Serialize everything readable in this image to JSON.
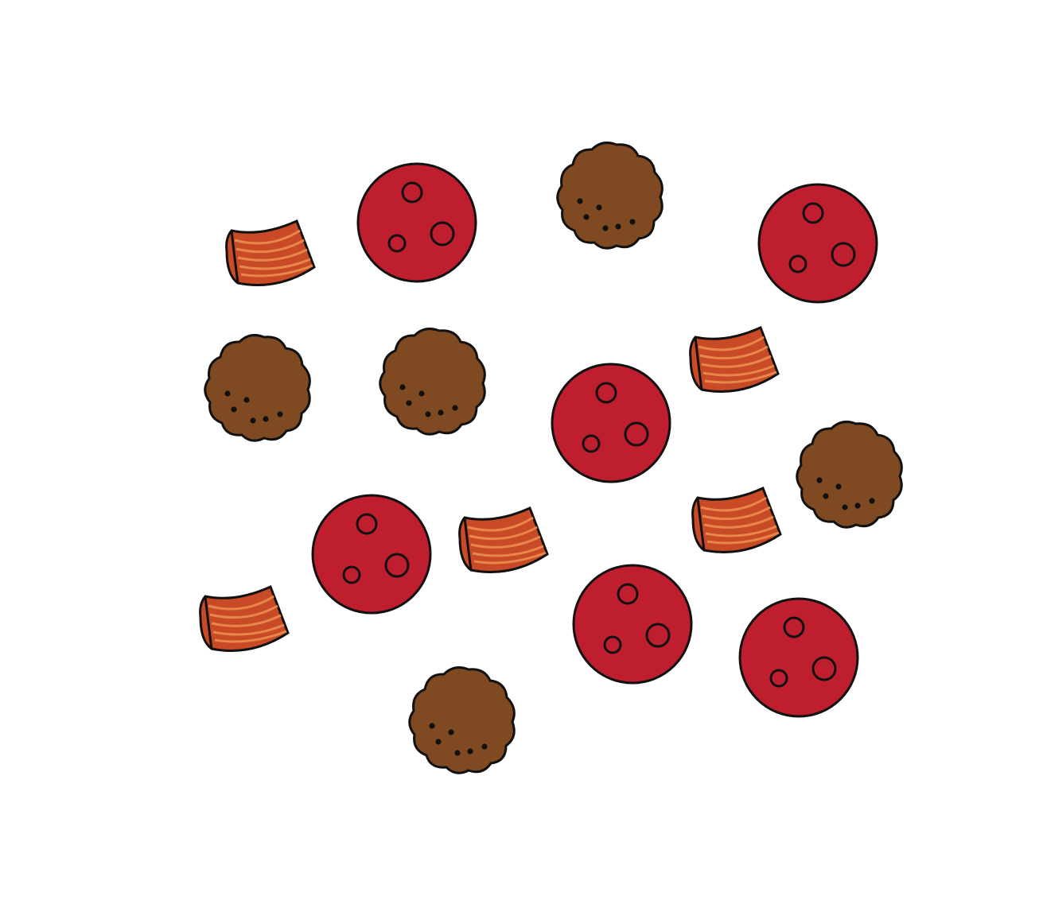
{
  "colors": {
    "background": "#ffffff",
    "outline": "#111111",
    "pepperoni": "#bf1e2e",
    "pepperoni_spot": "#bf1e2e",
    "meatball": "#7f4a21",
    "meatball_dot": "#111111",
    "bacon_dark": "#c94a26",
    "bacon_light": "#e8874a"
  },
  "items": {
    "pepperoni": {
      "icon": "pepperoni-slice-icon",
      "count": 6
    },
    "meatball": {
      "icon": "meatball-icon",
      "count": 5
    },
    "bacon": {
      "icon": "bacon-strip-icon",
      "count": 5
    }
  }
}
